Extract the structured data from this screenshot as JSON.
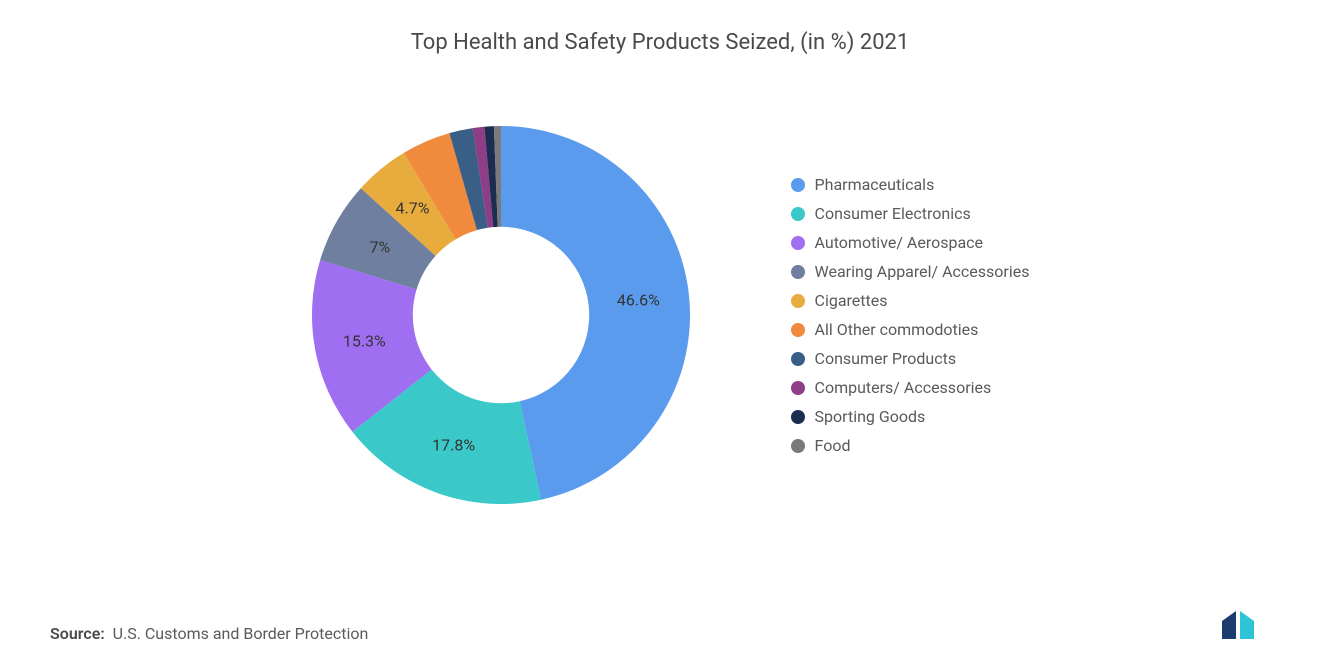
{
  "title": "Top Health and Safety Products Seized, (in %) 2021",
  "source_label": "Source:",
  "source_text": "U.S. Customs and Border Protection",
  "chart": {
    "type": "donut",
    "inner_radius_pct": 42,
    "outer_radius_pct": 90,
    "background_color": "#ffffff",
    "start_angle_deg": -90,
    "label_color": "#333333",
    "label_fontsize": 16,
    "legend_fontsize": 16,
    "title_fontsize": 22,
    "title_color": "#4a4a4a",
    "slices": [
      {
        "name": "Pharmaceuticals",
        "value": 46.6,
        "color": "#5a9bed",
        "show_label": true,
        "label": "46.6%"
      },
      {
        "name": "Consumer Electronics",
        "value": 17.8,
        "color": "#3bc8c8",
        "show_label": true,
        "label": "17.8%"
      },
      {
        "name": "Automotive/ Aerospace",
        "value": 15.3,
        "color": "#a06ef0",
        "show_label": true,
        "label": "15.3%"
      },
      {
        "name": "Wearing Apparel/ Accessories",
        "value": 7.0,
        "color": "#6e7fa0",
        "show_label": true,
        "label": "7%"
      },
      {
        "name": "Cigarettes",
        "value": 4.7,
        "color": "#e8ac3e",
        "show_label": true,
        "label": "4.7%"
      },
      {
        "name": "All Other commodoties",
        "value": 4.2,
        "color": "#f08a3c",
        "show_label": false,
        "label": ""
      },
      {
        "name": "Consumer Products",
        "value": 2.0,
        "color": "#3a5f87",
        "show_label": false,
        "label": ""
      },
      {
        "name": "Computers/ Accessories",
        "value": 1.0,
        "color": "#8e3d87",
        "show_label": false,
        "label": ""
      },
      {
        "name": "Sporting Goods",
        "value": 0.8,
        "color": "#1c2d52",
        "show_label": false,
        "label": ""
      },
      {
        "name": "Food",
        "value": 0.6,
        "color": "#7a7a7a",
        "show_label": false,
        "label": ""
      }
    ]
  },
  "logo": {
    "bar1_color": "#1c3b6e",
    "bar2_color": "#2ec4d6"
  }
}
